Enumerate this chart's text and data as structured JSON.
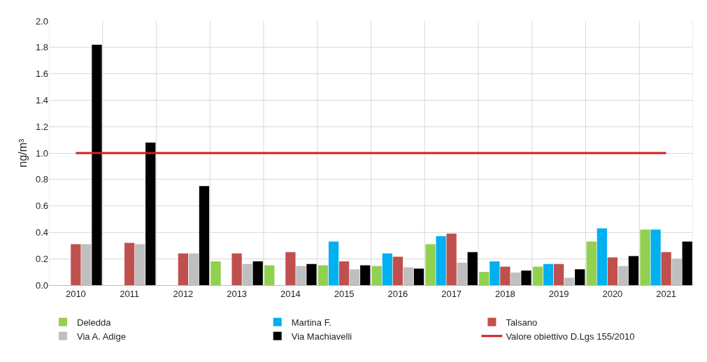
{
  "chart_data": {
    "type": "bar",
    "ylabel": "ng/m³",
    "categories": [
      "2010",
      "2011",
      "2012",
      "2013",
      "2014",
      "2015",
      "2016",
      "2017",
      "2018",
      "2019",
      "2020",
      "2021"
    ],
    "series": [
      {
        "name": "Deledda",
        "color": "#92d050",
        "values": [
          null,
          null,
          null,
          0.18,
          0.15,
          0.15,
          0.145,
          0.31,
          0.1,
          0.14,
          0.33,
          0.42
        ]
      },
      {
        "name": "Martina F.",
        "color": "#00b0f0",
        "values": [
          null,
          null,
          null,
          null,
          null,
          0.33,
          0.24,
          0.37,
          0.18,
          0.16,
          0.43,
          0.42
        ]
      },
      {
        "name": "Talsano",
        "color": "#c0504d",
        "values": [
          0.31,
          0.32,
          0.24,
          0.24,
          0.25,
          0.18,
          0.215,
          0.39,
          0.14,
          0.16,
          0.21,
          0.25
        ]
      },
      {
        "name": "Via A. Adige",
        "color": "#bfbfbf",
        "values": [
          0.31,
          0.31,
          0.24,
          0.16,
          0.145,
          0.12,
          0.135,
          0.17,
          0.095,
          0.056,
          0.145,
          0.2
        ]
      },
      {
        "name": "Via Machiavelli",
        "color": "#000000",
        "values": [
          1.82,
          1.08,
          0.75,
          0.18,
          0.16,
          0.15,
          0.125,
          0.25,
          0.11,
          0.12,
          0.22,
          0.33
        ]
      }
    ],
    "ref_lines": [
      {
        "axis": "y",
        "value": 1.0,
        "label": "Valore obiettivo D.Lgs 155/2010",
        "color": "#d02020"
      }
    ],
    "ylim": [
      0,
      2.0
    ],
    "yticks": [
      {
        "value": 0,
        "label": "0.0"
      },
      {
        "value": 0.2,
        "label": "0.2"
      },
      {
        "value": 0.4,
        "label": "0.4"
      },
      {
        "value": 0.6,
        "label": "0.6"
      },
      {
        "value": 0.8,
        "label": "0.8"
      },
      {
        "value": 1.0,
        "label": "1.0"
      },
      {
        "value": 1.2,
        "label": "1.2"
      },
      {
        "value": 1.4,
        "label": "1.4"
      },
      {
        "value": 1.6,
        "label": "1.6"
      },
      {
        "value": 1.8,
        "label": "1.8"
      },
      {
        "value": 2.0,
        "label": "2.0"
      }
    ],
    "grid": true,
    "legend": "bottom"
  }
}
